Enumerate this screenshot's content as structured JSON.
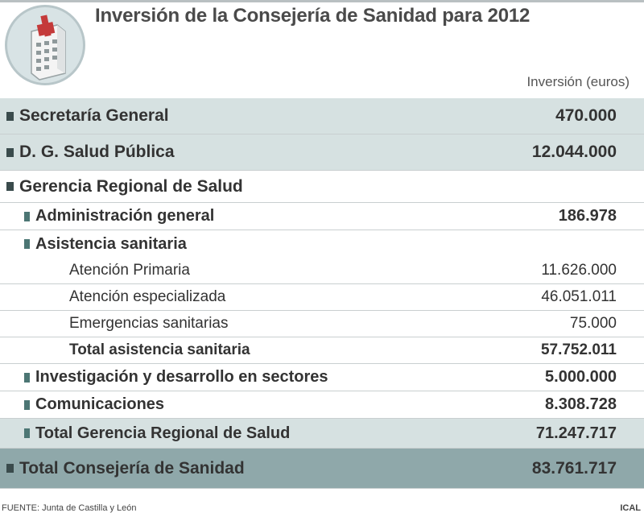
{
  "title": "Inversión de la Consejería de Sanidad para 2012",
  "column_header": "Inversión (euros)",
  "rows": [
    {
      "label": "Secretaría General",
      "value": "470.000"
    },
    {
      "label": "D. G. Salud Pública",
      "value": "12.044.000"
    },
    {
      "label": "Gerencia Regional de Salud",
      "value": ""
    },
    {
      "label": "Administración general",
      "value": "186.978"
    },
    {
      "label": "Asistencia sanitaria",
      "value": ""
    },
    {
      "label": "Atención Primaria",
      "value": "11.626.000"
    },
    {
      "label": "Atención especializada",
      "value": "46.051.011"
    },
    {
      "label": "Emergencias sanitarias",
      "value": "75.000"
    },
    {
      "label": "Total asistencia sanitaria",
      "value": "57.752.011"
    },
    {
      "label": "Investigación y desarrollo en sectores",
      "value": "5.000.000"
    },
    {
      "label": "Comunicaciones",
      "value": "8.308.728"
    },
    {
      "label": "Total Gerencia Regional de Salud",
      "value": "71.247.717"
    },
    {
      "label": "Total Consejería de Sanidad",
      "value": "83.761.717"
    }
  ],
  "footer": {
    "source": "FUENTE: Junta de Castilla y León",
    "credit": "ICAL"
  }
}
